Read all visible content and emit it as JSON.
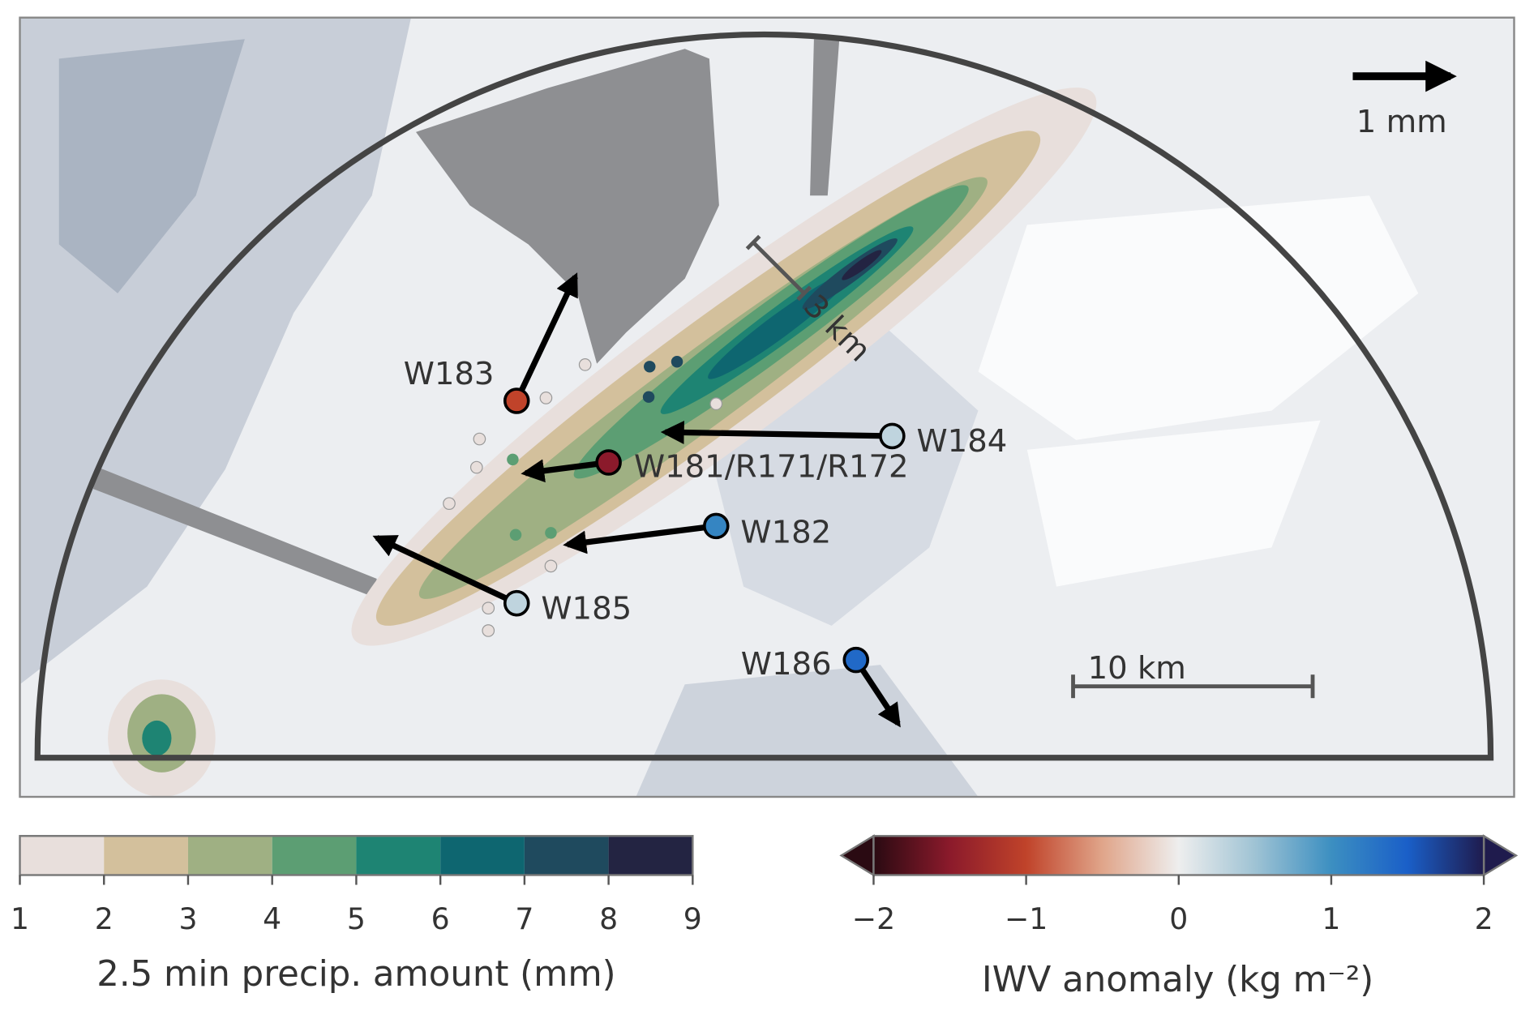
{
  "map": {
    "stations": [
      {
        "label": "W183",
        "iwv_anomaly": -1.0,
        "displacement_mm": [
          0.6,
          1.27
        ]
      },
      {
        "label": "W184",
        "iwv_anomaly": 0.3,
        "displacement_mm": [
          -2.32,
          0.04
        ]
      },
      {
        "label": "W181/R171/R172",
        "iwv_anomaly": -1.5,
        "displacement_mm": [
          -0.85,
          -0.11
        ]
      },
      {
        "label": "W182",
        "iwv_anomaly": 1.1,
        "displacement_mm": [
          -1.52,
          -0.19
        ]
      },
      {
        "label": "W185",
        "iwv_anomaly": 0.3,
        "displacement_mm": [
          -1.43,
          0.67
        ]
      },
      {
        "label": "W186",
        "iwv_anomaly": 1.4,
        "displacement_mm": [
          0.43,
          -0.65
        ]
      }
    ],
    "reference_arrow": {
      "value": 1,
      "label": "1 mm"
    },
    "scale_bars": [
      {
        "value": 10,
        "label": "10 km"
      },
      {
        "value": 3,
        "label": "3 km"
      }
    ]
  },
  "colorbars": [
    {
      "label": "2.5 min precip. amount (mm)",
      "bounds": [
        1,
        2,
        3,
        4,
        5,
        6,
        7,
        8,
        9
      ],
      "colors": [
        "#e8dfdc",
        "#d3c09c",
        "#9fb083",
        "#5c9e73",
        "#1e8473",
        "#0e6670",
        "#1f4a5e",
        "#232442"
      ],
      "ticks": [
        1,
        2,
        3,
        4,
        5,
        6,
        7,
        8,
        9
      ]
    },
    {
      "label": "IWV anomaly (kg m⁻²)",
      "range": [
        -2,
        2
      ],
      "ticks": [
        {
          "value": -2,
          "label": "−2"
        },
        {
          "value": -1,
          "label": "−1"
        },
        {
          "value": 0,
          "label": "0"
        },
        {
          "value": 1,
          "label": "1"
        },
        {
          "value": 2,
          "label": "2"
        }
      ]
    }
  ]
}
